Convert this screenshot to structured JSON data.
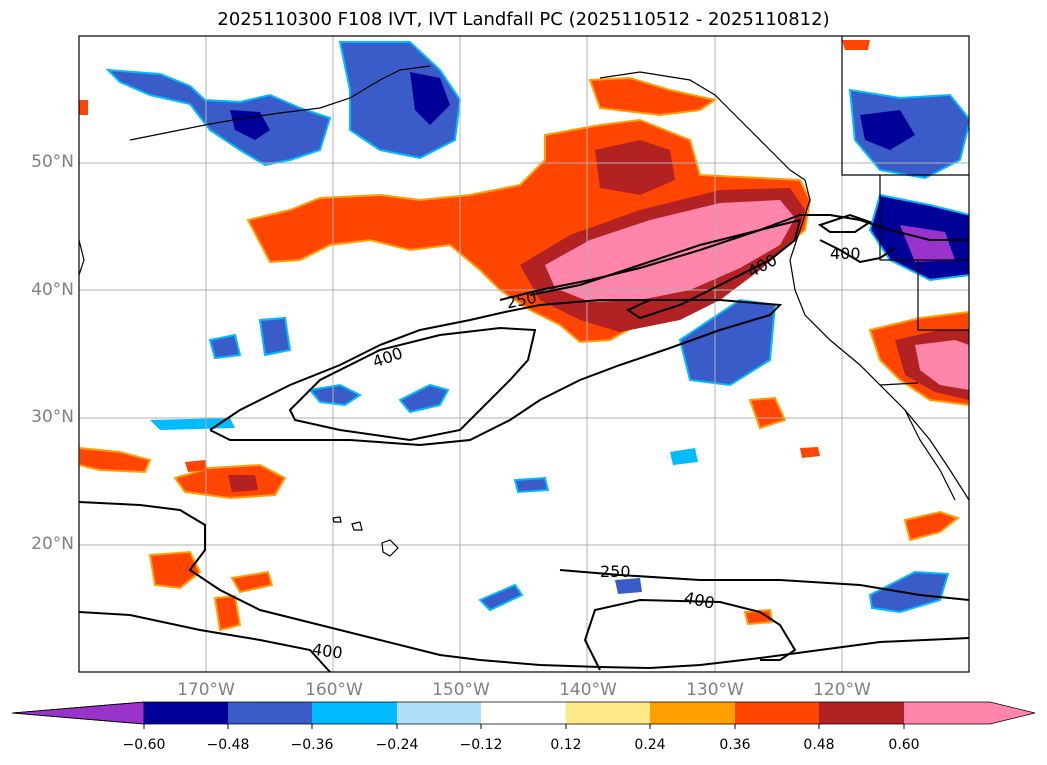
{
  "title": "2025110300 F108 IVT, IVT Landfall PC (2025110512 - 2025110812)",
  "colors": {
    "neg_060": "#9933cc",
    "neg_048": "#000099",
    "neg_036": "#3a5cc8",
    "neg_024": "#00bbff",
    "neg_012": "#aee0fa",
    "pos_012": "#ffe88a",
    "pos_024": "#ffa000",
    "pos_036": "#ff4500",
    "pos_048": "#b22222",
    "pos_060": "#ff85ab",
    "grid": "#b0b0b0",
    "tick_text": "#808080"
  },
  "lat_ticks": [
    "50°N",
    "40°N",
    "30°N",
    "20°N"
  ],
  "lon_ticks": [
    "170°W",
    "160°W",
    "150°W",
    "140°W",
    "130°W",
    "120°W"
  ],
  "colorbar": {
    "labels": [
      "−0.60",
      "−0.48",
      "−0.36",
      "−0.24",
      "−0.12",
      "0.12",
      "0.24",
      "0.36",
      "0.48",
      "0.60"
    ]
  },
  "contour_labels": {
    "c250_a": "250",
    "c250_b": "250",
    "c400_a": "400",
    "c400_b": "400",
    "c400_c": "400",
    "c400_d": "400",
    "c400_e": "400"
  }
}
